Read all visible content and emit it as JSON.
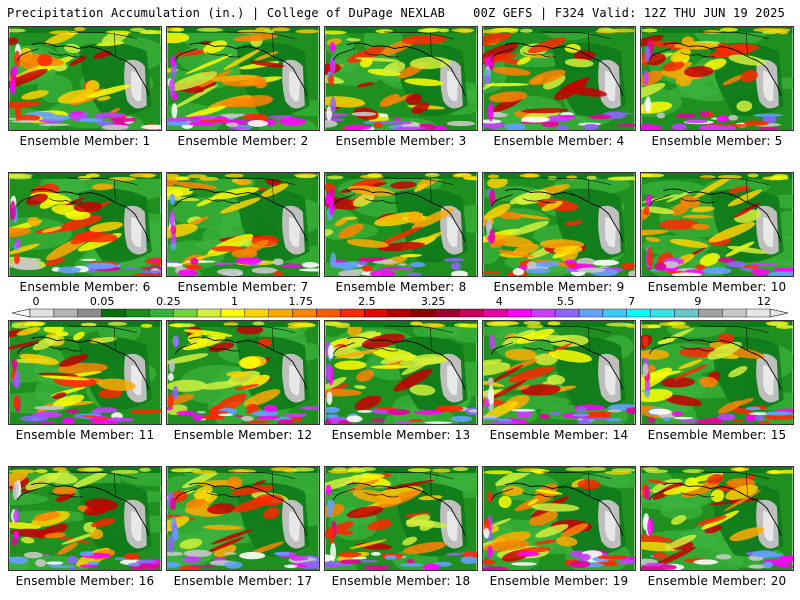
{
  "header": {
    "title": "Precipitation Accumulation (in.) | College of DuPage NEXLAB",
    "run_info": "00Z GEFS | F324 Valid: 12Z THU JUN 19 2025"
  },
  "members": [
    "Ensemble Member: 1",
    "Ensemble Member: 2",
    "Ensemble Member: 3",
    "Ensemble Member: 4",
    "Ensemble Member: 5",
    "Ensemble Member: 6",
    "Ensemble Member: 7",
    "Ensemble Member: 8",
    "Ensemble Member: 9",
    "Ensemble Member: 10",
    "Ensemble Member: 11",
    "Ensemble Member: 12",
    "Ensemble Member: 13",
    "Ensemble Member: 14",
    "Ensemble Member: 15",
    "Ensemble Member: 16",
    "Ensemble Member: 17",
    "Ensemble Member: 18",
    "Ensemble Member: 19",
    "Ensemble Member: 20"
  ],
  "colorbar": {
    "tick_labels": [
      "0",
      "0.05",
      "0.25",
      "1",
      "1.75",
      "2.5",
      "3.25",
      "4",
      "5.5",
      "7",
      "9",
      "12"
    ],
    "colors": [
      "#e0e0e0",
      "#b4b4b4",
      "#8c8c8c",
      "#0a6e0a",
      "#1c8c1c",
      "#32b432",
      "#78d23c",
      "#d2f03c",
      "#ffff00",
      "#ffd200",
      "#ffaa00",
      "#ff8200",
      "#ff5a00",
      "#ff2800",
      "#e60000",
      "#b40000",
      "#8c0000",
      "#a0002d",
      "#c8005a",
      "#e600a0",
      "#ff00ff",
      "#c83cff",
      "#8c64ff",
      "#64a0ff",
      "#3cc8ff",
      "#00ffff",
      "#32e6e6",
      "#64c8c8",
      "#a0a0a0",
      "#c8c8c8",
      "#e6e6e6"
    ]
  }
}
